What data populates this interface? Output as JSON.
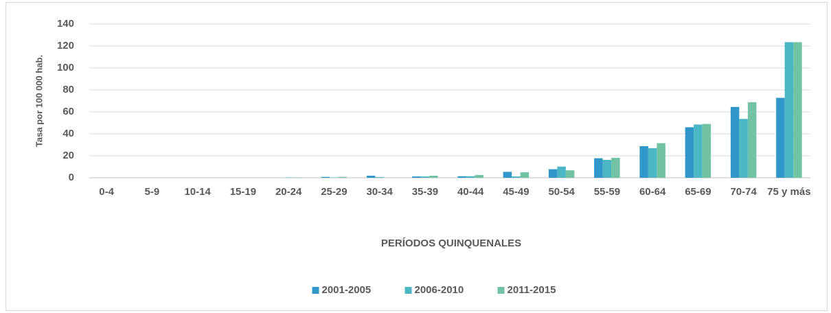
{
  "chart_data": {
    "type": "bar",
    "x_label": "PERÍODOS QUINQUENALES",
    "y_label": "Tasa por 100 000 hab.",
    "categories": [
      "0-4",
      "5-9",
      "10-14",
      "15-19",
      "20-24",
      "25-29",
      "30-34",
      "35-39",
      "40-44",
      "45-49",
      "50-54",
      "55-59",
      "60-64",
      "65-69",
      "70-74",
      "75 y más"
    ],
    "series": [
      {
        "name": "2001-2005",
        "color": "#3097c8",
        "values": [
          0,
          0,
          0,
          0,
          0,
          0.8,
          1.9,
          1.2,
          1.4,
          5.4,
          7.8,
          17.8,
          28.8,
          46,
          64.5,
          72.8
        ]
      },
      {
        "name": "2006-2010",
        "color": "#4db6c4",
        "values": [
          0,
          0,
          0,
          0,
          0.3,
          0.3,
          0.6,
          1.2,
          1.4,
          1.2,
          10.2,
          16.3,
          27,
          48.5,
          53.6,
          123.5
        ]
      },
      {
        "name": "2011-2015",
        "color": "#72c2a4",
        "values": [
          0,
          0,
          0,
          0,
          0.3,
          0.8,
          0,
          1.9,
          2.5,
          5,
          6.8,
          18.2,
          31.5,
          49,
          68.8,
          123.5
        ]
      }
    ],
    "ylim": [
      0,
      140
    ],
    "yticks": [
      0,
      20,
      40,
      60,
      80,
      100,
      120,
      140
    ],
    "grid": true,
    "legend": "bottom"
  }
}
